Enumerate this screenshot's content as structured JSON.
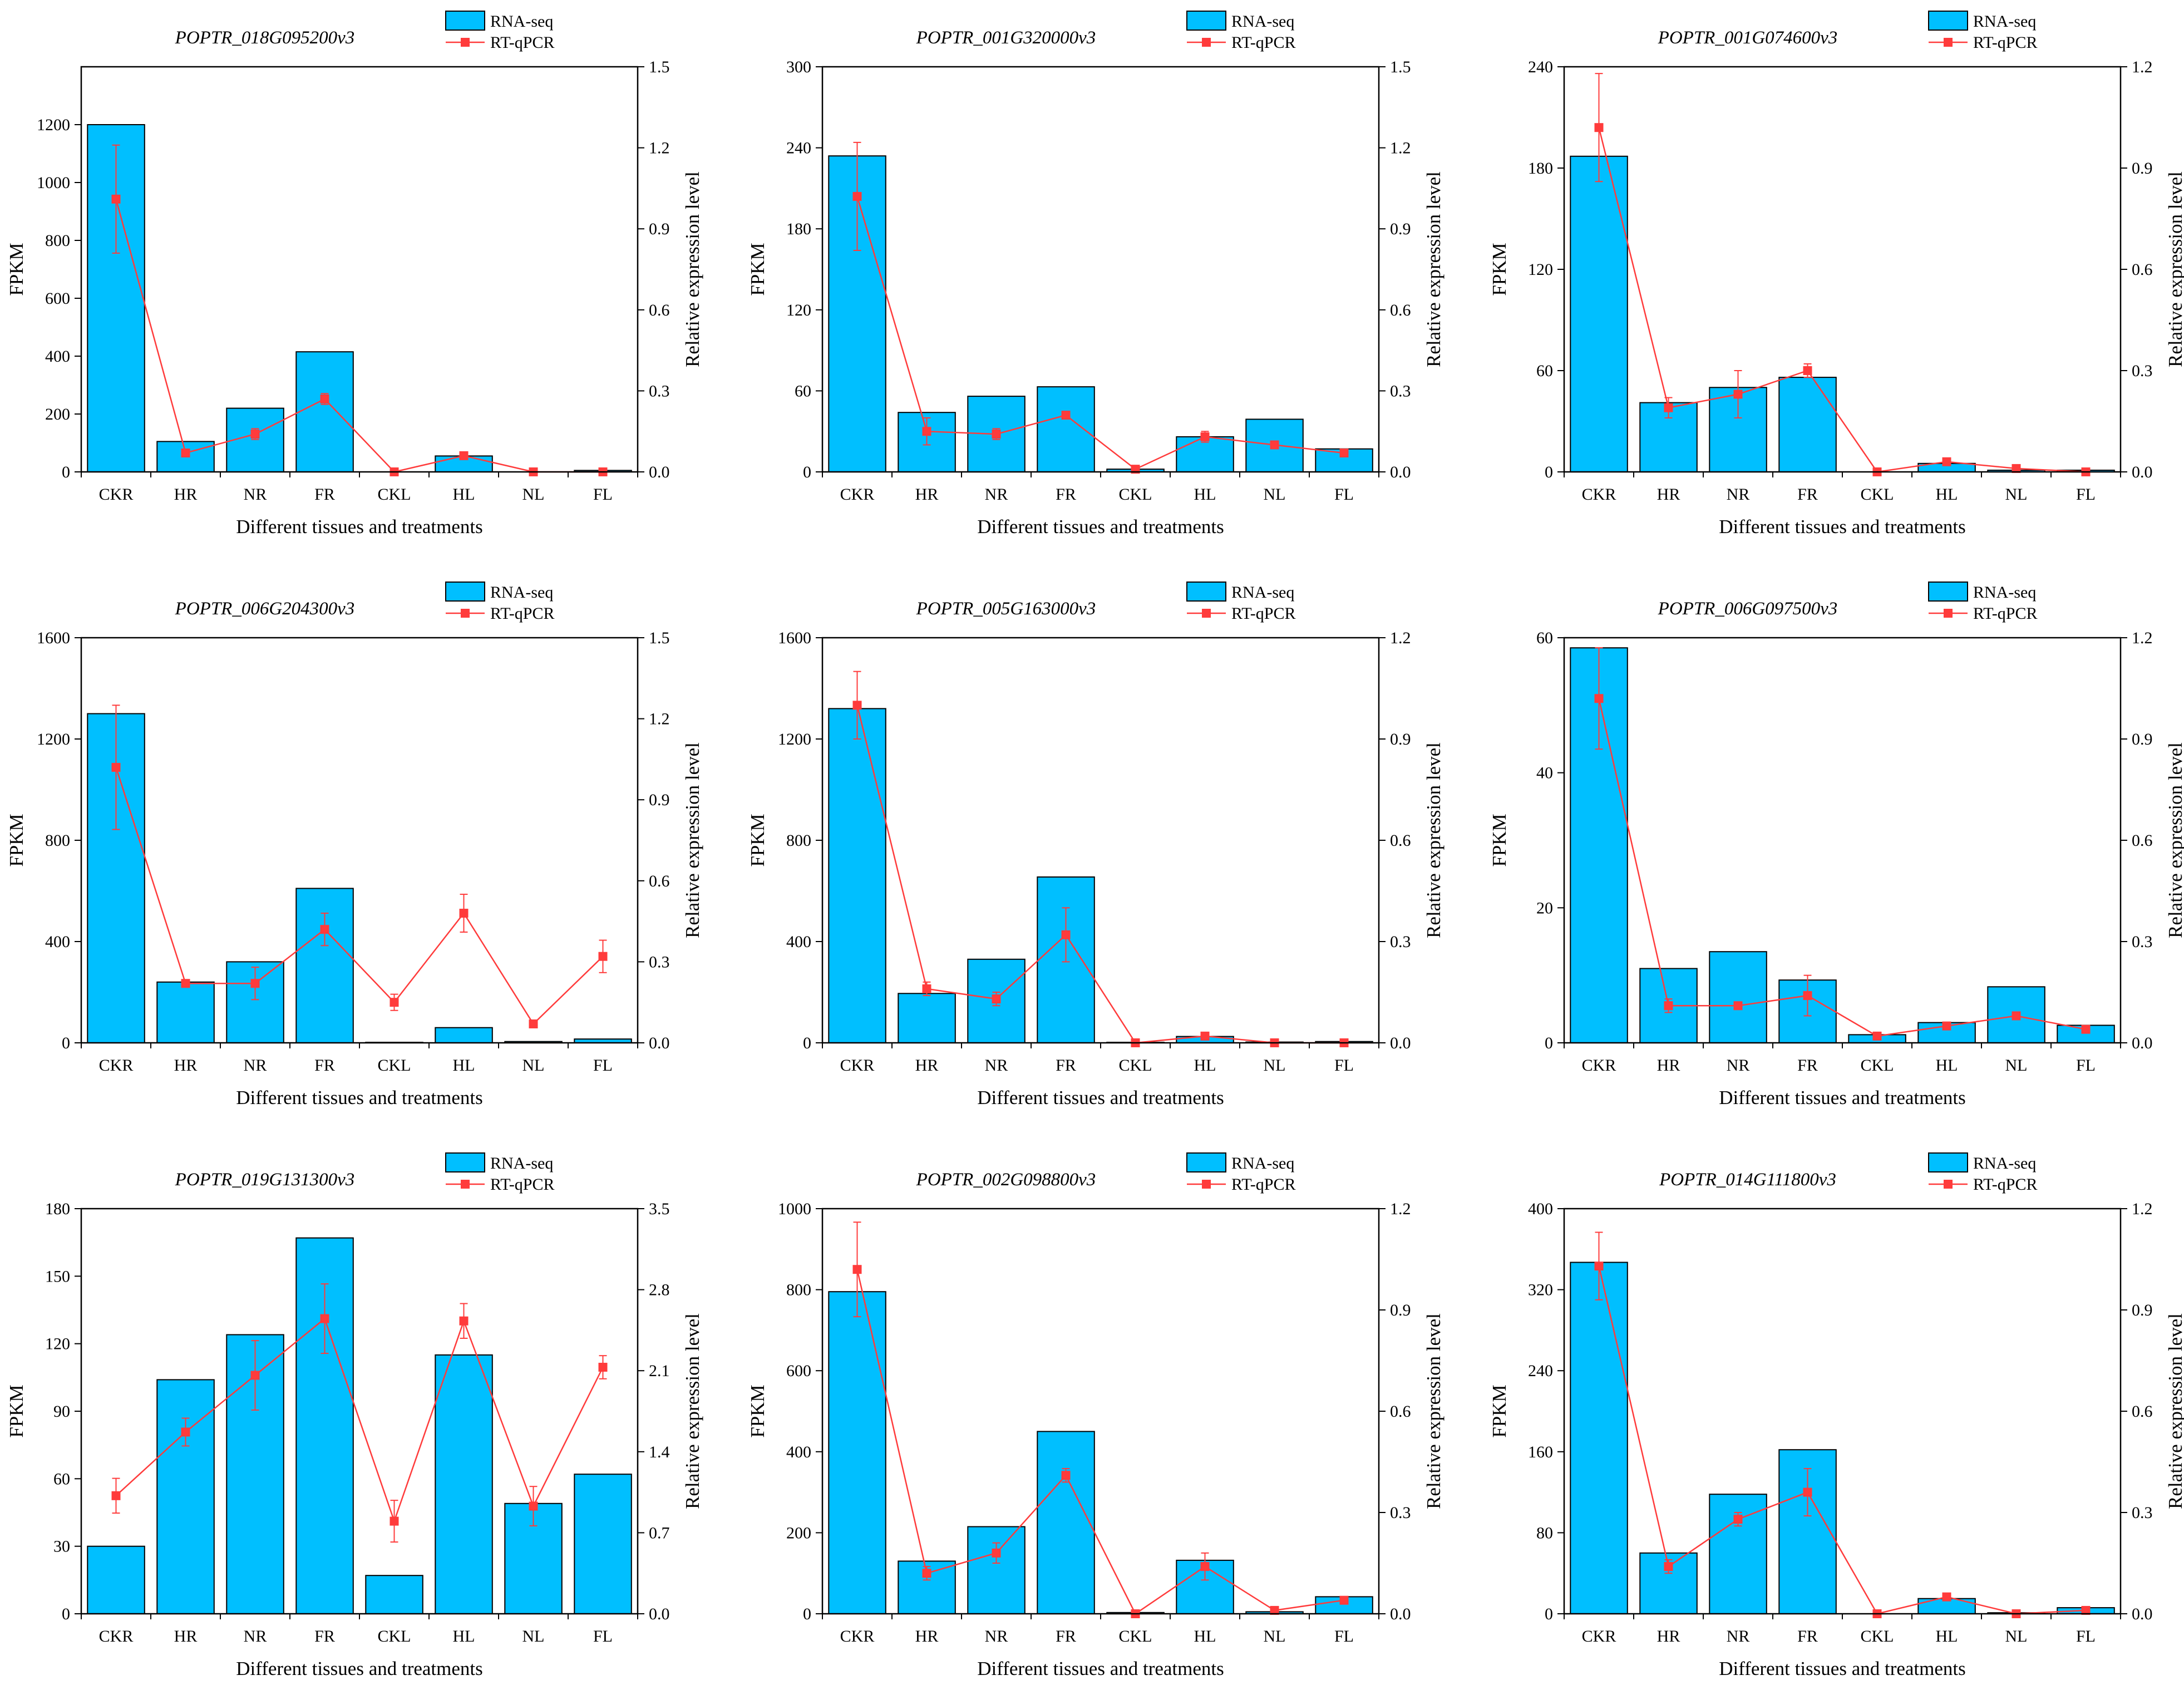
{
  "colors": {
    "bar_fill": "#00BFFF",
    "bar_stroke": "#000000",
    "line": "#FF3B3B",
    "axis": "#000000"
  },
  "chart_data": [
    {
      "type": "bar+line",
      "title": "POPTR_018G095200v3",
      "categories": [
        "CKR",
        "HR",
        "NR",
        "FR",
        "CKL",
        "HL",
        "NL",
        "FL"
      ],
      "xlabel": "Different tissues and treatments",
      "ylabel": "FPKM",
      "y2label": "Relative expression level",
      "ylim": [
        0,
        1400
      ],
      "yticks": [
        0,
        200,
        400,
        600,
        800,
        1000,
        1200
      ],
      "y2lim": [
        0,
        1.5
      ],
      "y2ticks": [
        "0.0",
        "0.3",
        "0.6",
        "0.9",
        "1.2",
        "1.5"
      ],
      "legend": [
        "RNA-seq",
        "RT-qPCR"
      ],
      "series": [
        {
          "name": "RNA-seq",
          "axis": "left",
          "values": [
            1200,
            105,
            220,
            415,
            0,
            55,
            0,
            5
          ]
        },
        {
          "name": "RT-qPCR",
          "axis": "right",
          "values": [
            1.01,
            0.07,
            0.14,
            0.27,
            0.0,
            0.06,
            0.0,
            0.0
          ],
          "errors": [
            0.2,
            0.01,
            0.02,
            0.02,
            0.0,
            0.01,
            0.0,
            0.0
          ]
        }
      ]
    },
    {
      "type": "bar+line",
      "title": "POPTR_001G320000v3",
      "categories": [
        "CKR",
        "HR",
        "NR",
        "FR",
        "CKL",
        "HL",
        "NL",
        "FL"
      ],
      "xlabel": "Different tissues and treatments",
      "ylabel": "FPKM",
      "y2label": "Relative expression level",
      "ylim": [
        0,
        300
      ],
      "yticks": [
        0,
        60,
        120,
        180,
        240,
        300
      ],
      "y2lim": [
        0,
        1.5
      ],
      "y2ticks": [
        "0.0",
        "0.3",
        "0.6",
        "0.9",
        "1.2",
        "1.5"
      ],
      "legend": [
        "RNA-seq",
        "RT-qPCR"
      ],
      "series": [
        {
          "name": "RNA-seq",
          "axis": "left",
          "values": [
            234,
            44,
            56,
            63,
            2,
            26,
            39,
            17
          ]
        },
        {
          "name": "RT-qPCR",
          "axis": "right",
          "values": [
            1.02,
            0.15,
            0.14,
            0.21,
            0.01,
            0.13,
            0.1,
            0.07
          ],
          "errors": [
            0.2,
            0.05,
            0.02,
            0.01,
            0.0,
            0.02,
            0.01,
            0.01
          ]
        }
      ]
    },
    {
      "type": "bar+line",
      "title": "POPTR_001G074600v3",
      "categories": [
        "CKR",
        "HR",
        "NR",
        "FR",
        "CKL",
        "HL",
        "NL",
        "FL"
      ],
      "xlabel": "Different tissues and treatments",
      "ylabel": "FPKM",
      "y2label": "Relative expression level",
      "ylim": [
        0,
        240
      ],
      "yticks": [
        0,
        60,
        120,
        180,
        240
      ],
      "y2lim": [
        0,
        1.2
      ],
      "y2ticks": [
        "0.0",
        "0.3",
        "0.6",
        "0.9",
        "1.2"
      ],
      "legend": [
        "RNA-seq",
        "RT-qPCR"
      ],
      "series": [
        {
          "name": "RNA-seq",
          "axis": "left",
          "values": [
            187,
            41,
            50,
            56,
            0,
            5,
            1,
            1
          ]
        },
        {
          "name": "RT-qPCR",
          "axis": "right",
          "values": [
            1.02,
            0.19,
            0.23,
            0.3,
            0.0,
            0.03,
            0.01,
            0.0
          ],
          "errors": [
            0.16,
            0.03,
            0.07,
            0.02,
            0.0,
            0.01,
            0.0,
            0.0
          ]
        }
      ]
    },
    {
      "type": "bar+line",
      "title": "POPTR_006G204300v3",
      "categories": [
        "CKR",
        "HR",
        "NR",
        "FR",
        "CKL",
        "HL",
        "NL",
        "FL"
      ],
      "xlabel": "Different tissues and treatments",
      "ylabel": "FPKM",
      "y2label": "Relative expression level",
      "ylim": [
        0,
        1600
      ],
      "yticks": [
        0,
        400,
        800,
        1200,
        1600
      ],
      "y2lim": [
        0,
        1.5
      ],
      "y2ticks": [
        "0.0",
        "0.3",
        "0.6",
        "0.9",
        "1.2",
        "1.5"
      ],
      "legend": [
        "RNA-seq",
        "RT-qPCR"
      ],
      "series": [
        {
          "name": "RNA-seq",
          "axis": "left",
          "values": [
            1300,
            240,
            320,
            610,
            2,
            60,
            5,
            15
          ]
        },
        {
          "name": "RT-qPCR",
          "axis": "right",
          "values": [
            1.02,
            0.22,
            0.22,
            0.42,
            0.15,
            0.48,
            0.07,
            0.32
          ],
          "errors": [
            0.23,
            0.0,
            0.06,
            0.06,
            0.03,
            0.07,
            0.0,
            0.06
          ]
        }
      ]
    },
    {
      "type": "bar+line",
      "title": "POPTR_005G163000v3",
      "categories": [
        "CKR",
        "HR",
        "NR",
        "FR",
        "CKL",
        "HL",
        "NL",
        "FL"
      ],
      "xlabel": "Different tissues and treatments",
      "ylabel": "FPKM",
      "y2label": "Relative expression level",
      "ylim": [
        0,
        1600
      ],
      "yticks": [
        0,
        400,
        800,
        1200,
        1600
      ],
      "y2lim": [
        0,
        1.2
      ],
      "y2ticks": [
        "0.0",
        "0.3",
        "0.6",
        "0.9",
        "1.2"
      ],
      "legend": [
        "RNA-seq",
        "RT-qPCR"
      ],
      "series": [
        {
          "name": "RNA-seq",
          "axis": "left",
          "values": [
            1320,
            195,
            330,
            655,
            2,
            25,
            3,
            5
          ]
        },
        {
          "name": "RT-qPCR",
          "axis": "right",
          "values": [
            1.0,
            0.16,
            0.13,
            0.32,
            0.0,
            0.02,
            0.0,
            0.0
          ],
          "errors": [
            0.1,
            0.02,
            0.02,
            0.08,
            0.0,
            0.01,
            0.0,
            0.0
          ]
        }
      ]
    },
    {
      "type": "bar+line",
      "title": "POPTR_006G097500v3",
      "categories": [
        "CKR",
        "HR",
        "NR",
        "FR",
        "CKL",
        "HL",
        "NL",
        "FL"
      ],
      "xlabel": "Different tissues and treatments",
      "ylabel": "FPKM",
      "y2label": "Relative expression level",
      "ylim": [
        0,
        60
      ],
      "yticks": [
        0,
        20,
        40,
        60
      ],
      "y2lim": [
        0,
        1.2
      ],
      "y2ticks": [
        "0.0",
        "0.3",
        "0.6",
        "0.9",
        "1.2"
      ],
      "legend": [
        "RNA-seq",
        "RT-qPCR"
      ],
      "series": [
        {
          "name": "RNA-seq",
          "axis": "left",
          "values": [
            58.5,
            11,
            13.5,
            9.3,
            1.2,
            3,
            8.3,
            2.6
          ]
        },
        {
          "name": "RT-qPCR",
          "axis": "right",
          "values": [
            1.02,
            0.11,
            0.11,
            0.14,
            0.02,
            0.05,
            0.08,
            0.04
          ],
          "errors": [
            0.15,
            0.02,
            0.01,
            0.06,
            0.01,
            0.01,
            0.01,
            0.01
          ]
        }
      ]
    },
    {
      "type": "bar+line",
      "title": "POPTR_019G131300v3",
      "categories": [
        "CKR",
        "HR",
        "NR",
        "FR",
        "CKL",
        "HL",
        "NL",
        "FL"
      ],
      "xlabel": "Different tissues and treatments",
      "ylabel": "FPKM",
      "y2label": "Relative expression level",
      "ylim": [
        0,
        180
      ],
      "yticks": [
        0,
        30,
        60,
        90,
        120,
        150,
        180
      ],
      "y2lim": [
        0,
        3.5
      ],
      "y2ticks": [
        "0.0",
        "0.7",
        "1.4",
        "2.1",
        "2.8",
        "3.5"
      ],
      "legend": [
        "RNA-seq",
        "RT-qPCR"
      ],
      "series": [
        {
          "name": "RNA-seq",
          "axis": "left",
          "values": [
            30,
            104,
            124,
            167,
            17,
            115,
            49,
            62
          ]
        },
        {
          "name": "RT-qPCR",
          "axis": "right",
          "values": [
            1.02,
            1.57,
            2.06,
            2.55,
            0.8,
            2.53,
            0.93,
            2.13
          ],
          "errors": [
            0.15,
            0.12,
            0.3,
            0.3,
            0.18,
            0.15,
            0.17,
            0.1
          ]
        }
      ]
    },
    {
      "type": "bar+line",
      "title": "POPTR_002G098800v3",
      "categories": [
        "CKR",
        "HR",
        "NR",
        "FR",
        "CKL",
        "HL",
        "NL",
        "FL"
      ],
      "xlabel": "Different tissues and treatments",
      "ylabel": "FPKM",
      "y2label": "Relative expression level",
      "ylim": [
        0,
        1000
      ],
      "yticks": [
        0,
        200,
        400,
        600,
        800,
        1000
      ],
      "y2lim": [
        0,
        1.2
      ],
      "y2ticks": [
        "0.0",
        "0.3",
        "0.6",
        "0.9",
        "1.2"
      ],
      "legend": [
        "RNA-seq",
        "RT-qPCR"
      ],
      "series": [
        {
          "name": "RNA-seq",
          "axis": "left",
          "values": [
            795,
            130,
            215,
            450,
            3,
            132,
            5,
            42
          ]
        },
        {
          "name": "RT-qPCR",
          "axis": "right",
          "values": [
            1.02,
            0.12,
            0.18,
            0.41,
            0.0,
            0.14,
            0.01,
            0.04
          ],
          "errors": [
            0.14,
            0.02,
            0.03,
            0.02,
            0.0,
            0.04,
            0.0,
            0.01
          ]
        }
      ]
    },
    {
      "type": "bar+line",
      "title": "POPTR_014G111800v3",
      "categories": [
        "CKR",
        "HR",
        "NR",
        "FR",
        "CKL",
        "HL",
        "NL",
        "FL"
      ],
      "xlabel": "Different tissues and treatments",
      "ylabel": "FPKM",
      "y2label": "Relative expression level",
      "ylim": [
        0,
        400
      ],
      "yticks": [
        0,
        80,
        160,
        240,
        320,
        400
      ],
      "y2lim": [
        0,
        1.2
      ],
      "y2ticks": [
        "0.0",
        "0.3",
        "0.6",
        "0.9",
        "1.2"
      ],
      "legend": [
        "RNA-seq",
        "RT-qPCR"
      ],
      "series": [
        {
          "name": "RNA-seq",
          "axis": "left",
          "values": [
            347,
            60,
            118,
            162,
            0,
            15,
            1,
            6
          ]
        },
        {
          "name": "RT-qPCR",
          "axis": "right",
          "values": [
            1.03,
            0.14,
            0.28,
            0.36,
            0.0,
            0.05,
            0.0,
            0.01
          ],
          "errors": [
            0.1,
            0.02,
            0.02,
            0.07,
            0.0,
            0.01,
            0.0,
            0.0
          ]
        }
      ]
    }
  ]
}
